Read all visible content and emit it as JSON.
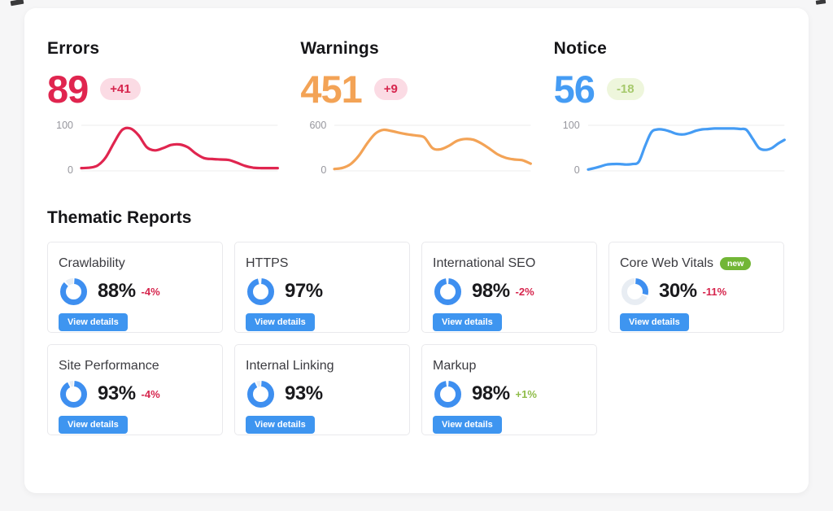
{
  "colors": {
    "errors_red": "#e0254f",
    "warnings_orange": "#f3a356",
    "notice_blue": "#459cf4",
    "button_blue": "#3e95f0",
    "donut_blue": "#3e8ff0",
    "donut_track": "#e8edf3",
    "badge_red_bg": "#fbdbe4",
    "badge_red_text": "#d6254d",
    "badge_green_bg": "#eef6dc",
    "badge_green_text": "#a6c96c",
    "delta_green": "#8fbc49",
    "new_badge_green": "#72b636",
    "gridline": "#ececee"
  },
  "summary": [
    {
      "title": "Errors",
      "value": "89",
      "delta": "+41",
      "delta_type": "negative",
      "axis_max": "100",
      "axis_min": "0"
    },
    {
      "title": "Warnings",
      "value": "451",
      "delta": "+9",
      "delta_type": "negative",
      "axis_max": "600",
      "axis_min": "0"
    },
    {
      "title": "Notice",
      "value": "56",
      "delta": "-18",
      "delta_type": "positive",
      "axis_max": "100",
      "axis_min": "0"
    }
  ],
  "chart_data": [
    {
      "type": "line",
      "name": "Errors trend",
      "color": "#e0254f",
      "ylim": [
        0,
        100
      ],
      "grid": "top-and-bottom",
      "legend": "none",
      "y": [
        6,
        7,
        12,
        30,
        62,
        90,
        93,
        78,
        52,
        45,
        50,
        57,
        58,
        52,
        38,
        28,
        26,
        25,
        24,
        18,
        11,
        7,
        6,
        6,
        6
      ]
    },
    {
      "type": "line",
      "name": "Warnings trend",
      "color": "#f3a356",
      "ylim": [
        0,
        600
      ],
      "grid": "top-and-bottom",
      "legend": "none",
      "y": [
        25,
        40,
        90,
        200,
        360,
        490,
        540,
        525,
        500,
        480,
        465,
        440,
        300,
        285,
        330,
        395,
        420,
        410,
        360,
        290,
        215,
        170,
        150,
        140,
        95
      ]
    },
    {
      "type": "line",
      "name": "Notice trend",
      "color": "#459cf4",
      "ylim": [
        0,
        100
      ],
      "grid": "top-and-bottom",
      "legend": "none",
      "y": [
        3,
        6,
        10,
        14,
        15,
        15,
        14,
        15,
        20,
        55,
        85,
        91,
        90,
        86,
        81,
        80,
        83,
        88,
        91,
        92,
        93,
        93,
        93,
        93,
        92,
        90,
        70,
        50,
        46,
        50,
        60,
        68
      ]
    },
    {
      "type": "pie",
      "name": "Thematic report scores (donuts)",
      "categories": [
        "Crawlability",
        "HTTPS",
        "International SEO",
        "Core Web Vitals",
        "Site Performance",
        "Internal Linking",
        "Markup"
      ],
      "values": [
        88,
        97,
        98,
        30,
        93,
        93,
        98
      ]
    }
  ],
  "thematic": {
    "heading": "Thematic Reports",
    "button_label": "View details",
    "cards": [
      {
        "title": "Crawlability",
        "percent": 88,
        "percent_label": "88%",
        "delta": "-4%",
        "delta_type": "negative"
      },
      {
        "title": "HTTPS",
        "percent": 97,
        "percent_label": "97%"
      },
      {
        "title": "International SEO",
        "percent": 98,
        "percent_label": "98%",
        "delta": "-2%",
        "delta_type": "negative"
      },
      {
        "title": "Core Web Vitals",
        "percent": 30,
        "percent_label": "30%",
        "delta": "-11%",
        "delta_type": "negative",
        "badge": "new"
      },
      {
        "title": "Site Performance",
        "percent": 93,
        "percent_label": "93%",
        "delta": "-4%",
        "delta_type": "negative"
      },
      {
        "title": "Internal Linking",
        "percent": 93,
        "percent_label": "93%"
      },
      {
        "title": "Markup",
        "percent": 98,
        "percent_label": "98%",
        "delta": "+1%",
        "delta_type": "positive"
      }
    ]
  }
}
